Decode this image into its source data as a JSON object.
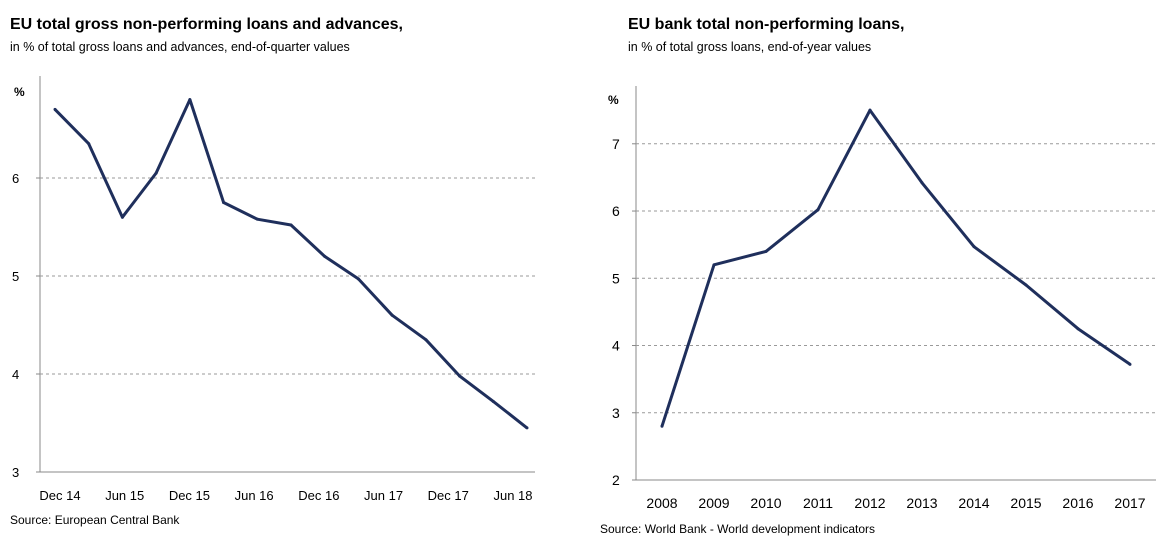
{
  "charts": [
    {
      "title": "EU  total gross non-performing loans and advances,",
      "subtitle": "in % of total gross loans and advances, end-of-quarter values",
      "source": "Source: European Central Bank"
    },
    {
      "title": "EU bank total non-performing loans,",
      "subtitle": "in % of total gross loans, end-of-year values",
      "source": "Source: World Bank - World development indicators"
    }
  ],
  "chart_data": [
    {
      "type": "line",
      "title": "EU  total gross non-performing loans and advances,",
      "subtitle": "in % of total gross loans and advances, end-of-quarter values",
      "ylabel": "%",
      "xlabel": "",
      "x_tick_labels": [
        "Dec 14",
        "Jun 15",
        "Dec 15",
        "Jun 16",
        "Dec 16",
        "Jun 17",
        "Dec 17",
        "Jun 18"
      ],
      "y_ticks": [
        3,
        4,
        5,
        6
      ],
      "ylim": [
        3,
        7
      ],
      "grid": true,
      "line_color": "#1f2f5c",
      "series": [
        {
          "values": [
            6.7,
            6.35,
            5.6,
            6.05,
            6.8,
            5.75,
            5.58,
            5.52,
            5.2,
            4.97,
            4.6,
            4.35,
            3.98,
            3.72,
            3.45
          ]
        }
      ]
    },
    {
      "type": "line",
      "title": "EU bank total non-performing loans,",
      "subtitle": "in % of total gross loans, end-of-year values",
      "ylabel": "%",
      "xlabel": "",
      "categories": [
        "2008",
        "2009",
        "2010",
        "2011",
        "2012",
        "2013",
        "2014",
        "2015",
        "2016",
        "2017"
      ],
      "y_ticks": [
        2,
        3,
        4,
        5,
        6,
        7
      ],
      "ylim": [
        2,
        7.8
      ],
      "grid": true,
      "line_color": "#1f2f5c",
      "series": [
        {
          "values": [
            2.8,
            5.2,
            5.4,
            6.02,
            7.5,
            6.42,
            5.47,
            4.9,
            4.25,
            3.72
          ]
        }
      ]
    }
  ]
}
